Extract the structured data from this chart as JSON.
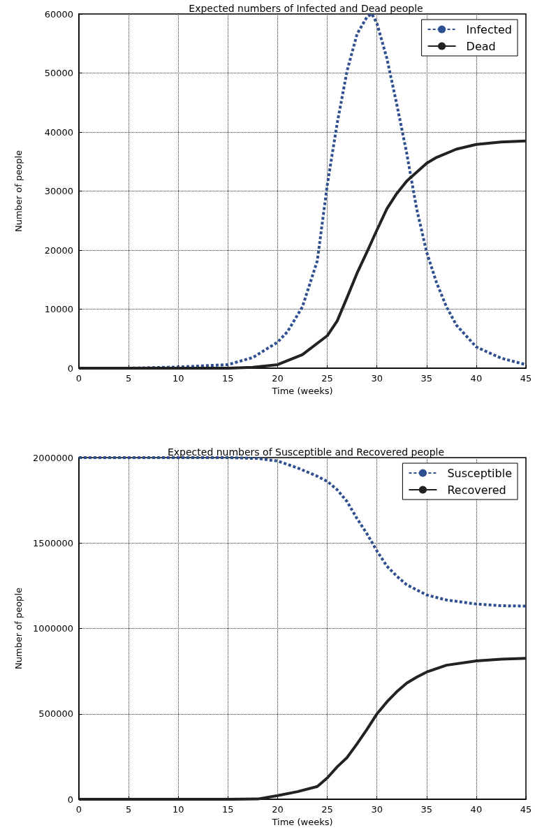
{
  "chart_data": [
    {
      "type": "line",
      "title": "Expected numbers of Infected and Dead people",
      "xlabel": "Time (weeks)",
      "ylabel": "Number of people",
      "xlim": [
        0,
        45
      ],
      "xticks": [
        0,
        5,
        10,
        15,
        20,
        25,
        30,
        35,
        40,
        45
      ],
      "ylim": [
        0,
        60000
      ],
      "yticks": [
        0,
        10000,
        20000,
        30000,
        40000,
        50000,
        60000
      ],
      "grid": true,
      "legend": "top right",
      "series": [
        {
          "name": "Infected",
          "color": "#2e4f8f",
          "line_style": "dashed",
          "x": [
            0,
            5,
            10,
            15,
            17.5,
            20,
            21,
            22.5,
            24,
            25,
            26,
            27,
            28,
            29,
            29.5,
            30,
            31,
            32,
            33,
            34,
            35,
            36,
            37,
            38,
            40,
            42.5,
            45
          ],
          "values": [
            0,
            0,
            200,
            600,
            1800,
            4400,
            6200,
            10400,
            18200,
            31000,
            41500,
            50400,
            56600,
            59500,
            60000,
            58400,
            52500,
            44700,
            36400,
            27000,
            19700,
            14500,
            10400,
            7300,
            3600,
            1700,
            600
          ]
        },
        {
          "name": "Dead",
          "color": "#222222",
          "line_style": "solid",
          "x": [
            0,
            5,
            10,
            15,
            17.5,
            20,
            22.5,
            25,
            26,
            27,
            28,
            29,
            30,
            31,
            32,
            33,
            34,
            35,
            36,
            38,
            40,
            42.5,
            45
          ],
          "values": [
            0,
            0,
            0,
            0,
            150,
            600,
            2300,
            5500,
            8000,
            12000,
            16100,
            19700,
            23400,
            27000,
            29600,
            31700,
            33200,
            34700,
            35700,
            37100,
            37900,
            38300,
            38500
          ]
        }
      ]
    },
    {
      "type": "line",
      "title": "Expected numbers of Susceptible and Recovered people",
      "xlabel": "Time (weeks)",
      "ylabel": "Number of people",
      "xlim": [
        0,
        45
      ],
      "xticks": [
        0,
        5,
        10,
        15,
        20,
        25,
        30,
        35,
        40,
        45
      ],
      "ylim": [
        0,
        2000000
      ],
      "yticks": [
        0,
        500000,
        1000000,
        1500000,
        2000000
      ],
      "grid": true,
      "legend": "top right",
      "series": [
        {
          "name": "Susceptible",
          "color": "#2e4f8f",
          "line_style": "dashed",
          "x": [
            0,
            5,
            10,
            15,
            18,
            20,
            22,
            24,
            25,
            26,
            27,
            28,
            29,
            30,
            31,
            32,
            33,
            35,
            37,
            40,
            42.5,
            45
          ],
          "values": [
            2000000,
            2000000,
            2000000,
            2000000,
            1995000,
            1980000,
            1940000,
            1891000,
            1861000,
            1812000,
            1742000,
            1643000,
            1554000,
            1454000,
            1365000,
            1306000,
            1256000,
            1196000,
            1167000,
            1143000,
            1133000,
            1131000
          ]
        },
        {
          "name": "Recovered",
          "color": "#222222",
          "line_style": "solid",
          "x": [
            0,
            5,
            10,
            15,
            18,
            20,
            22,
            24,
            25,
            26,
            27,
            28,
            29,
            30,
            31,
            32,
            33,
            34,
            35,
            37,
            40,
            42.5,
            45
          ],
          "values": [
            0,
            0,
            0,
            0,
            2000,
            22000,
            45000,
            75000,
            125000,
            190000,
            245000,
            325000,
            410000,
            500000,
            570000,
            630000,
            680000,
            715000,
            745000,
            785000,
            810000,
            820000,
            825000
          ]
        }
      ]
    }
  ]
}
